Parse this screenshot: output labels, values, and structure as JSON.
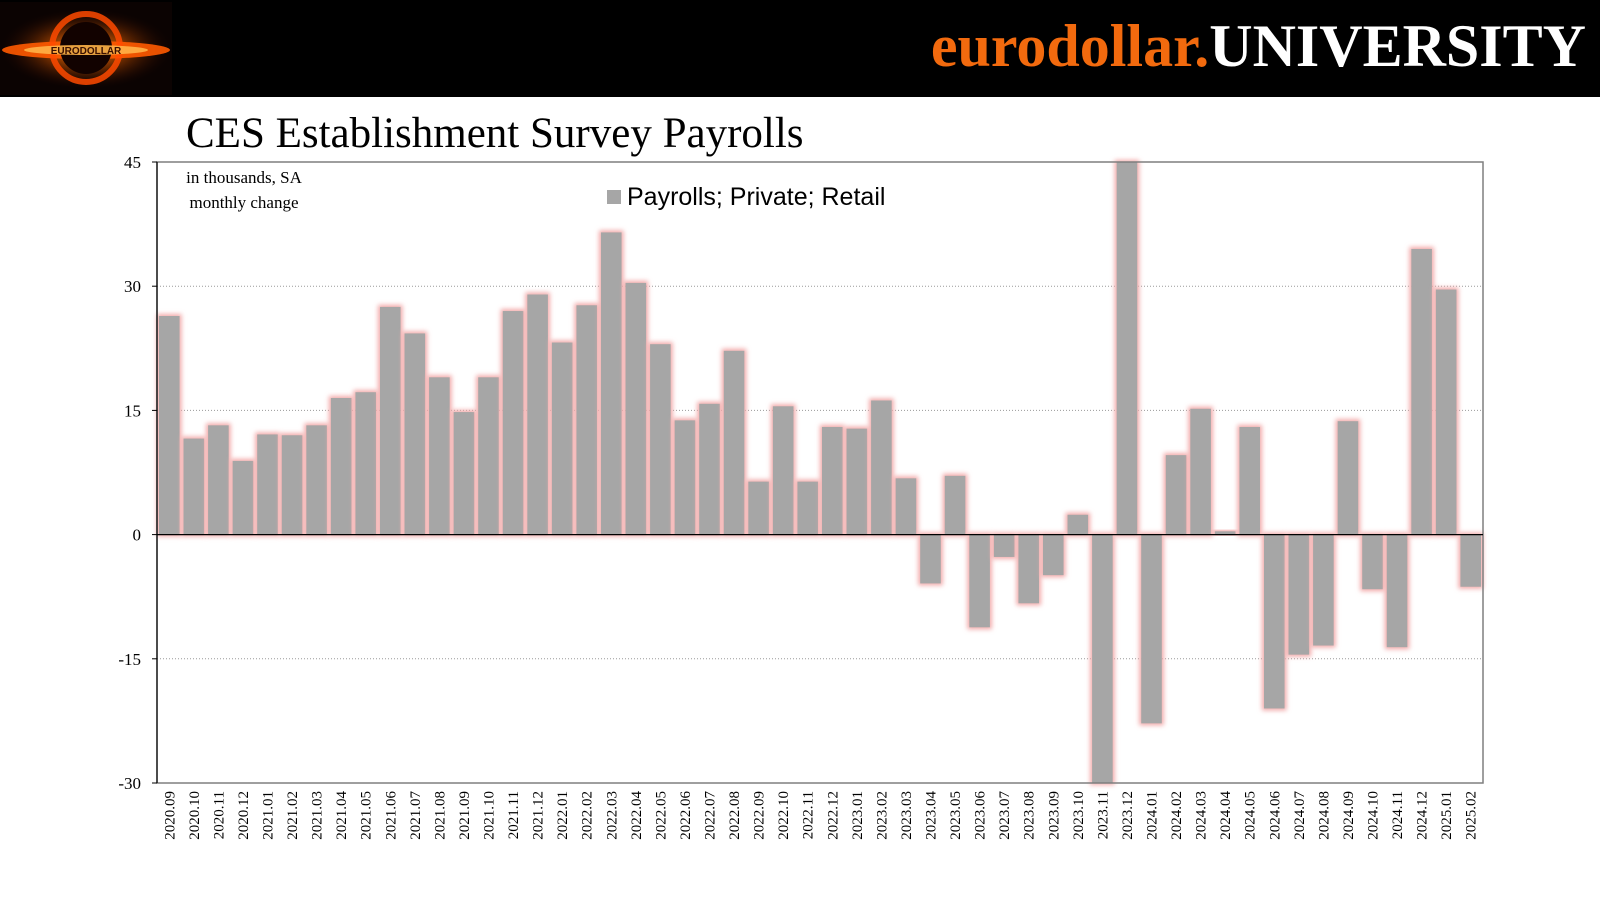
{
  "header": {
    "brand_part1": "eurodollar.",
    "brand_part2": "UNIVERSITY",
    "brand_color": "#f26a0e",
    "logo_text": "EURODOLLAR"
  },
  "chart_data": {
    "type": "bar",
    "title": "CES Establishment Survey Payrolls",
    "annotation_line1": "in thousands, SA",
    "annotation_line2": "monthly change",
    "xlabel": "",
    "ylabel": "",
    "ylim": [
      -30,
      45
    ],
    "yticks": [
      45,
      30,
      15,
      0,
      -15,
      -30
    ],
    "grid": true,
    "legend_position": "top-center",
    "bar_color": "#a6a6a6",
    "glow_color": "#f2aaaa",
    "categories": [
      "2020.09",
      "2020.10",
      "2020.11",
      "2020.12",
      "2021.01",
      "2021.02",
      "2021.03",
      "2021.04",
      "2021.05",
      "2021.06",
      "2021.07",
      "2021.08",
      "2021.09",
      "2021.10",
      "2021.11",
      "2021.12",
      "2022.01",
      "2022.02",
      "2022.03",
      "2022.04",
      "2022.05",
      "2022.06",
      "2022.07",
      "2022.08",
      "2022.09",
      "2022.10",
      "2022.11",
      "2022.12",
      "2023.01",
      "2023.02",
      "2023.03",
      "2023.04",
      "2023.05",
      "2023.06",
      "2023.07",
      "2023.08",
      "2023.09",
      "2023.10",
      "2023.11",
      "2023.12",
      "2024.01",
      "2024.02",
      "2024.03",
      "2024.04",
      "2024.05",
      "2024.06",
      "2024.07",
      "2024.08",
      "2024.09",
      "2024.10",
      "2024.11",
      "2024.12",
      "2025.01",
      "2025.02"
    ],
    "series": [
      {
        "name": "Payrolls; Private; Retail",
        "values": [
          26.4,
          11.6,
          13.2,
          8.9,
          12.1,
          12.0,
          13.2,
          16.5,
          17.2,
          27.5,
          24.3,
          19.0,
          14.8,
          19.0,
          27.0,
          29.0,
          23.2,
          27.7,
          36.5,
          30.4,
          23.0,
          13.8,
          15.8,
          22.2,
          6.4,
          15.5,
          6.4,
          13.0,
          12.8,
          16.2,
          6.8,
          -5.9,
          7.1,
          -11.2,
          -2.7,
          -8.3,
          -4.9,
          2.4,
          -31.0,
          46.0,
          -22.8,
          9.6,
          15.2,
          0.4,
          13.0,
          -21.0,
          -14.5,
          -13.4,
          13.7,
          -6.6,
          -13.6,
          34.5,
          29.6,
          -6.3
        ]
      }
    ]
  }
}
